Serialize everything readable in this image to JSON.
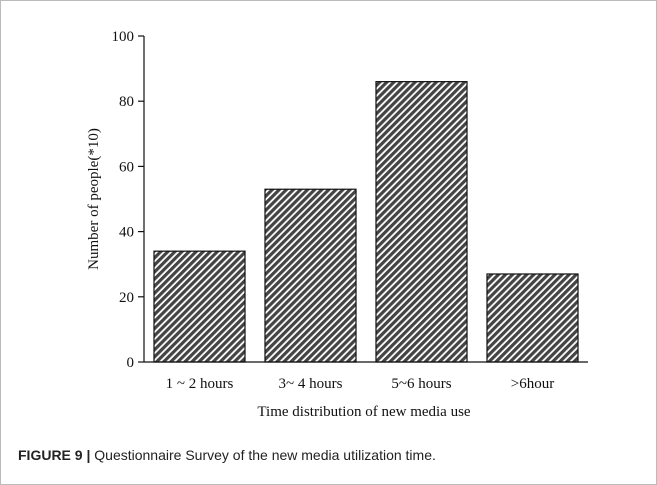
{
  "chart_data": {
    "type": "bar",
    "xlabel": "Time distribution of new media use",
    "ylabel": "Number of people(*10)",
    "categories": [
      "1 ~ 2 hours",
      "3~ 4 hours",
      "5~6 hours",
      ">6hour"
    ],
    "values": [
      34,
      53,
      86,
      27
    ],
    "color": "#555555",
    "ylim": [
      0,
      100
    ],
    "yticks": [
      0,
      20,
      40,
      60,
      80,
      100
    ]
  },
  "caption": {
    "label": "FIGURE 9 |",
    "text": "Questionnaire Survey of the new media utilization time."
  }
}
